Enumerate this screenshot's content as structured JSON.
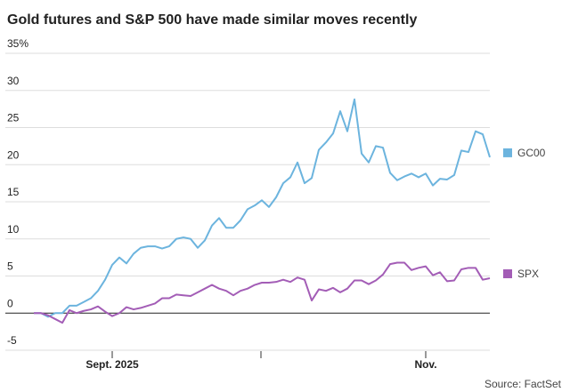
{
  "chart_data": {
    "type": "line",
    "title": "Gold futures and S&P 500 have made similar moves recently",
    "source": "Source: FactSet",
    "categories": [
      null,
      null,
      null,
      null,
      null,
      null,
      null,
      null,
      null,
      null,
      null,
      "Sept. 2025",
      null,
      null,
      null,
      null,
      null,
      null,
      null,
      null,
      null,
      null,
      null,
      null,
      null,
      null,
      null,
      null,
      null,
      null,
      null,
      null,
      null,
      null,
      null,
      null,
      null,
      null,
      null,
      null,
      null,
      null,
      null,
      null,
      null,
      null,
      null,
      null,
      null,
      null,
      null,
      null,
      null,
      null,
      null,
      "Nov.",
      null,
      null,
      null,
      null,
      null,
      null,
      null,
      null,
      null
    ],
    "series": [
      {
        "name": "GC00",
        "color": "#6cb4de",
        "values": [
          0,
          0,
          -0.5,
          0,
          0,
          1,
          1,
          1.5,
          2,
          3,
          4.5,
          6.5,
          7.5,
          6.7,
          8,
          8.8,
          9,
          9,
          8.7,
          9,
          10,
          10.2,
          10,
          8.8,
          9.8,
          11.8,
          12.8,
          11.5,
          11.5,
          12.5,
          14,
          14.5,
          15.2,
          14.3,
          15.6,
          17.5,
          18.3,
          20.3,
          17.5,
          18.2,
          22,
          23,
          24.2,
          27.2,
          24.5,
          28.8,
          21.5,
          20.3,
          22.5,
          22.3,
          18.9,
          17.9,
          18.4,
          18.8,
          18.3,
          18.8,
          17.2,
          18.1,
          18,
          18.6,
          21.9,
          21.7,
          24.5,
          24.1,
          21
        ]
      },
      {
        "name": "SPX",
        "color": "#a35db6",
        "values": [
          0,
          0,
          -0.3,
          -0.8,
          -1.3,
          0.4,
          0,
          0.3,
          0.5,
          0.9,
          0.2,
          -0.4,
          0,
          0.8,
          0.5,
          0.7,
          1,
          1.3,
          2,
          2,
          2.5,
          2.4,
          2.3,
          2.8,
          3.3,
          3.8,
          3.3,
          3,
          2.4,
          3,
          3.3,
          3.8,
          4.1,
          4.1,
          4.2,
          4.5,
          4.2,
          4.8,
          4.5,
          1.7,
          3.2,
          3,
          3.4,
          2.8,
          3.3,
          4.4,
          4.4,
          3.9,
          4.4,
          5.2,
          6.6,
          6.8,
          6.8,
          5.8,
          6.1,
          6.3,
          5.1,
          5.5,
          4.3,
          4.4,
          5.9,
          6.1,
          6.1,
          4.5,
          4.7
        ]
      }
    ],
    "ylim": [
      -5,
      35
    ],
    "yticks": [
      -5,
      0,
      5,
      10,
      15,
      20,
      25,
      30,
      {
        "value": 35,
        "label": "35%"
      }
    ],
    "grid": true
  }
}
